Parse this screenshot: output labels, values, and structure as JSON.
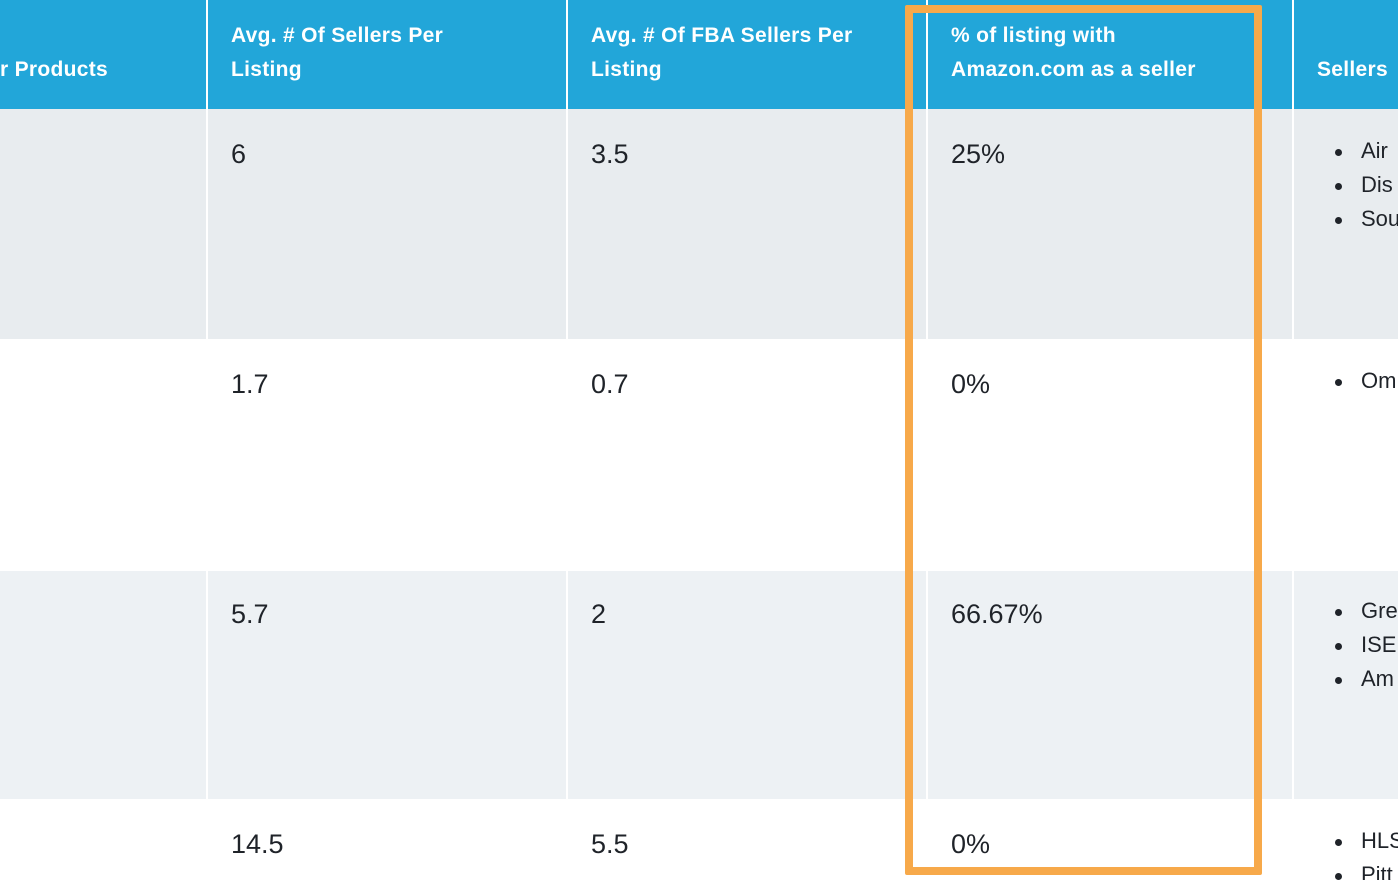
{
  "headers": {
    "col1": "r Products",
    "col2_line1": "Avg. # Of Sellers Per",
    "col2_line2": "Listing",
    "col3_line1": "Avg. # Of FBA Sellers Per",
    "col3_line2": "Listing",
    "col4_line1": "% of listing with",
    "col4_line2": "Amazon.com as a seller",
    "col5": "Sellers"
  },
  "rows": [
    {
      "avg_sellers": "6",
      "avg_fba": "3.5",
      "pct_amazon": "25%",
      "sellers": [
        "Air",
        "Dis",
        "Sou"
      ]
    },
    {
      "avg_sellers": "1.7",
      "avg_fba": "0.7",
      "pct_amazon": "0%",
      "sellers": [
        "Om"
      ]
    },
    {
      "avg_sellers": "5.7",
      "avg_fba": "2",
      "pct_amazon": "66.67%",
      "sellers": [
        "Gre",
        "ISE",
        "Am"
      ]
    },
    {
      "avg_sellers": "14.5",
      "avg_fba": "5.5",
      "pct_amazon": "0%",
      "sellers": [
        "HLS",
        "Pitt"
      ]
    }
  ],
  "highlight": {
    "color": "#f7a94a"
  },
  "colors": {
    "header_bg": "#22a6d9",
    "header_text": "#ffffff",
    "row_shade": "#e8ecef",
    "text": "#1f2329"
  }
}
